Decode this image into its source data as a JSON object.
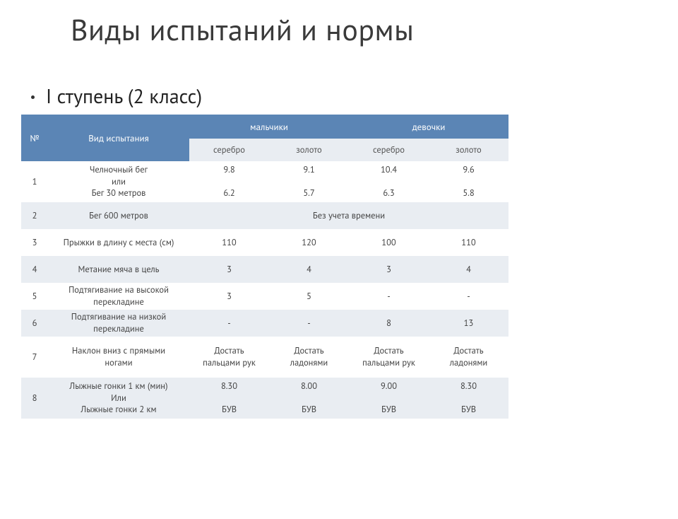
{
  "title": "Виды испытаний и нормы",
  "subtitle": "I ступень (2 класс)",
  "table": {
    "header": {
      "num": "№",
      "test_kind": "Вид испытания",
      "boys": "мальчики",
      "girls": "девочки",
      "silver": "серебро",
      "gold": "золото"
    },
    "colors": {
      "header_bg": "#5b85b5",
      "header_text": "#ffffff",
      "sub_header_bg": "#e9edf2",
      "row_even_bg": "#e9edf2",
      "row_odd_bg": "#ffffff",
      "text": "#444444"
    },
    "no_time": "Без учета времени",
    "rows": [
      {
        "n": "1",
        "name": "Челночный бег\nили\nБег 30 метров",
        "boys_silver": "9.8\n\n6.2",
        "boys_gold": "9.1\n\n5.7",
        "girls_silver": "10.4\n\n6.3",
        "girls_gold": "9.6\n\n5.8",
        "tall": true
      },
      {
        "n": "2",
        "name": "Бег 600 метров",
        "merged_all": "Без учета времени"
      },
      {
        "n": "3",
        "name": "Прыжки в длину с места (см)",
        "boys_silver": "110",
        "boys_gold": "120",
        "girls_silver": "100",
        "girls_gold": "110"
      },
      {
        "n": "4",
        "name": "Метание мяча в цель",
        "boys_silver": "3",
        "boys_gold": "4",
        "girls_silver": "3",
        "girls_gold": "4"
      },
      {
        "n": "5",
        "name": "Подтягивание на высокой\nперекладине",
        "boys_silver": "3",
        "boys_gold": "5",
        "girls_silver": "-",
        "girls_gold": "-"
      },
      {
        "n": "6",
        "name": "Подтягивание на низкой\nперекладине",
        "boys_silver": "-",
        "boys_gold": "-",
        "girls_silver": "8",
        "girls_gold": "13"
      },
      {
        "n": "7",
        "name": "Наклон вниз с прямыми\nногами",
        "boys_silver": "Достать\nпальцами рук",
        "boys_gold": "Достать\nладонями",
        "girls_silver": "Достать\nпальцами рук",
        "girls_gold": "Достать\nладонями",
        "tall": true
      },
      {
        "n": "8",
        "name": "Лыжные гонки 1 км (мин)\nИли\nЛыжные гонки 2 км",
        "boys_silver": "8.30\n\nБУВ",
        "boys_gold": "8.00\n\nБУВ",
        "girls_silver": "9.00\n\nБУВ",
        "girls_gold": "8.30\n\nБУВ",
        "tall": true
      }
    ]
  }
}
